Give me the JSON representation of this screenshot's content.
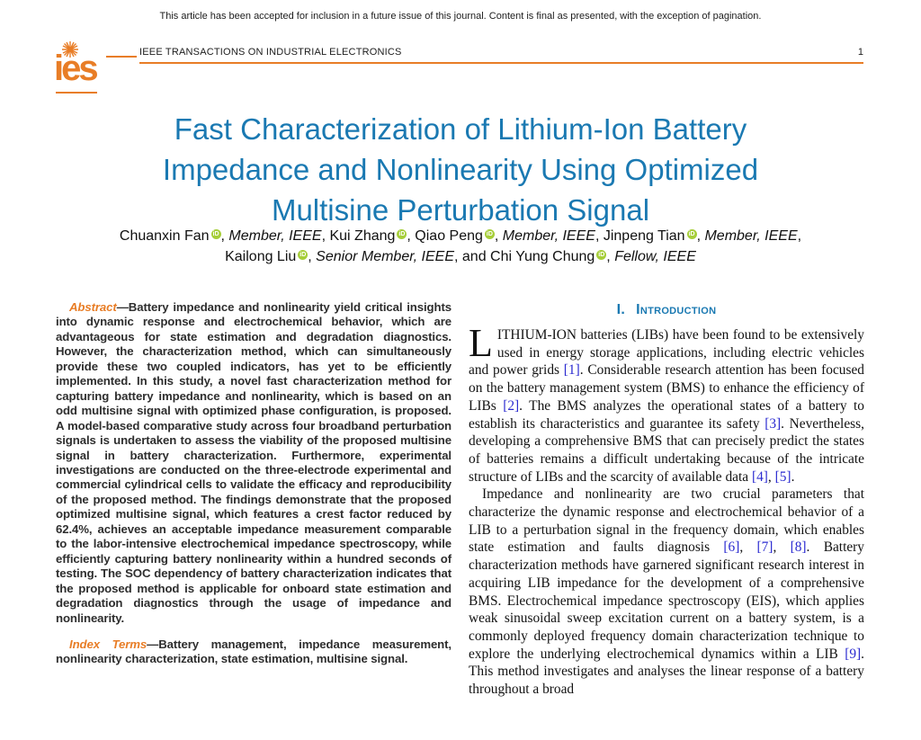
{
  "notice": "This article has been accepted for inclusion in a future issue of this journal. Content is final as presented, with the exception of pagination.",
  "header": {
    "journal": "IEEE TRANSACTIONS ON INDUSTRIAL ELECTRONICS",
    "page_number": "1",
    "logo_text": "ies",
    "logo_icon": "starburst-icon"
  },
  "colors": {
    "accent_orange": "#e87d26",
    "title_blue": "#1a79b2",
    "citation_blue": "#2a2ad0",
    "orcid_green": "#a6ce39"
  },
  "article": {
    "title_lines": [
      "Fast Characterization of Lithium-Ion Battery",
      "Impedance and Nonlinearity Using Optimized",
      "Multisine Perturbation Signal"
    ],
    "orcid_label": "iD",
    "authors": [
      {
        "name": "Chuanxin Fan",
        "orcid": true,
        "affil": "Member, IEEE"
      },
      {
        "name": "Kui Zhang",
        "orcid": true,
        "affil": ""
      },
      {
        "name": "Qiao Peng",
        "orcid": true,
        "affil": "Member, IEEE"
      },
      {
        "name": "Jinpeng Tian",
        "orcid": true,
        "affil": "Member, IEEE",
        "break_after": true
      },
      {
        "name": "Kailong Liu",
        "orcid": true,
        "affil": "Senior Member, IEEE"
      },
      {
        "name": "Chi Yung Chung",
        "orcid": true,
        "affil": "Fellow, IEEE",
        "lead": "and "
      }
    ],
    "abstract": {
      "label": "Abstract",
      "text": "—Battery impedance and nonlinearity yield critical insights into dynamic response and electrochemical behavior, which are advantageous for state estimation and degradation diagnostics. However, the characterization method, which can simultaneously provide these two coupled indicators, has yet to be efficiently implemented. In this study, a novel fast characterization method for capturing battery impedance and nonlinearity, which is based on an odd multisine signal with optimized phase configuration, is proposed. A model-based comparative study across four broadband perturbation signals is undertaken to assess the viability of the proposed multisine signal in battery characterization. Furthermore, experimental investigations are conducted on the three-electrode experimental and commercial cylindrical cells to validate the efficacy and reproducibility of the proposed method. The findings demonstrate that the proposed optimized multisine signal, which features a crest factor reduced by 62.4%, achieves an acceptable impedance measurement comparable to the labor-intensive electrochemical impedance spectroscopy, while efficiently capturing battery nonlinearity within a hundred seconds of testing. The SOC dependency of battery characterization indicates that the proposed method is applicable for onboard state estimation and degradation diagnostics through the usage of impedance and nonlinearity."
    },
    "index_terms": {
      "label": "Index Terms",
      "text": "—Battery management, impedance measurement, nonlinearity characterization, state estimation, multisine signal."
    },
    "sections": [
      {
        "number": "I.",
        "title": "Introduction",
        "paragraphs": [
          {
            "dropcap": "L",
            "segments": [
              {
                "t": "ITHIUM-ION batteries (LIBs) have been found to be extensively used in energy storage applications, including electric vehicles and power grids "
              },
              {
                "t": "[1]",
                "cite": true
              },
              {
                "t": ". Considerable research attention has been focused on the battery management system (BMS) to enhance the efficiency of LIBs "
              },
              {
                "t": "[2]",
                "cite": true
              },
              {
                "t": ". The BMS analyzes the operational states of a battery to establish its characteristics and guarantee its safety "
              },
              {
                "t": "[3]",
                "cite": true
              },
              {
                "t": ". Nevertheless, developing a comprehensive BMS that can precisely predict the states of batteries remains a difficult undertaking because of the intricate structure of LIBs and the scarcity of available data "
              },
              {
                "t": "[4]",
                "cite": true
              },
              {
                "t": ", "
              },
              {
                "t": "[5]",
                "cite": true
              },
              {
                "t": "."
              }
            ]
          },
          {
            "segments": [
              {
                "t": "Impedance and nonlinearity are two crucial parameters that characterize the dynamic response and electrochemical behavior of a LIB to a perturbation signal in the frequency domain, which enables state estimation and faults diagnosis "
              },
              {
                "t": "[6]",
                "cite": true
              },
              {
                "t": ", "
              },
              {
                "t": "[7]",
                "cite": true
              },
              {
                "t": ", "
              },
              {
                "t": "[8]",
                "cite": true
              },
              {
                "t": ". Battery characterization methods have garnered significant research interest in acquiring LIB impedance for the development of a comprehensive BMS. Electrochemical impedance spectroscopy (EIS), which applies weak sinusoidal sweep excitation current on a battery system, is a commonly deployed frequency domain characterization technique to explore the underlying electrochemical dynamics within a LIB "
              },
              {
                "t": "[9]",
                "cite": true
              },
              {
                "t": ". This method investigates and analyses the linear response of a battery throughout a broad"
              }
            ]
          }
        ]
      }
    ]
  }
}
